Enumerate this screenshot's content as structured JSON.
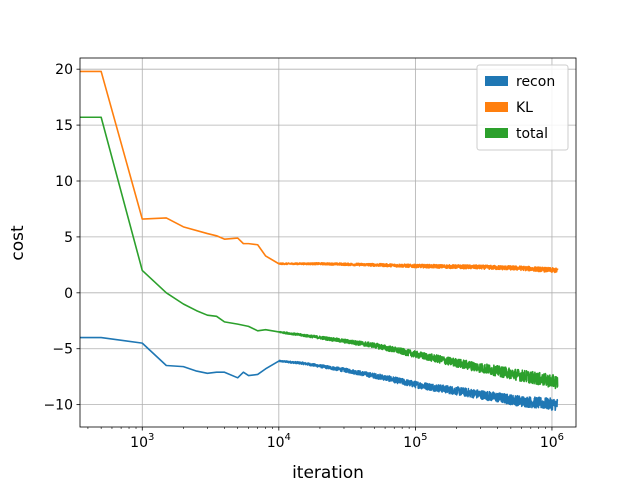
{
  "chart_data": {
    "type": "line",
    "xlabel": "iteration",
    "ylabel": "cost",
    "x_scale": "log",
    "xlim": [
      350,
      1500000
    ],
    "ylim": [
      -12,
      21
    ],
    "grid": true,
    "legend_position": "top-right",
    "x_ticks": [
      {
        "value": 1000,
        "base": "10",
        "exp": "3"
      },
      {
        "value": 10000,
        "base": "10",
        "exp": "4"
      },
      {
        "value": 100000,
        "base": "10",
        "exp": "5"
      },
      {
        "value": 1000000,
        "base": "10",
        "exp": "6"
      }
    ],
    "y_ticks": [
      {
        "value": -10,
        "label": "−10"
      },
      {
        "value": -5,
        "label": "−5"
      },
      {
        "value": 0,
        "label": "0"
      },
      {
        "value": 5,
        "label": "5"
      },
      {
        "value": 10,
        "label": "10"
      },
      {
        "value": 15,
        "label": "15"
      },
      {
        "value": 20,
        "label": "20"
      }
    ],
    "series": [
      {
        "name": "recon",
        "color": "#1f77b4",
        "noise": [
          0.1,
          0.5,
          0.9
        ],
        "points": [
          [
            350,
            -4.0
          ],
          [
            500,
            -4.0
          ],
          [
            1000,
            -4.5
          ],
          [
            1500,
            -6.5
          ],
          [
            2000,
            -6.6
          ],
          [
            2500,
            -7.0
          ],
          [
            3000,
            -7.2
          ],
          [
            3500,
            -7.1
          ],
          [
            4000,
            -7.1
          ],
          [
            5000,
            -7.6
          ],
          [
            5500,
            -7.1
          ],
          [
            6000,
            -7.4
          ],
          [
            7000,
            -7.3
          ],
          [
            8000,
            -6.8
          ],
          [
            10000,
            -6.1
          ],
          [
            15000,
            -6.3
          ],
          [
            30000,
            -6.9
          ],
          [
            60000,
            -7.6
          ],
          [
            100000,
            -8.2
          ],
          [
            300000,
            -9.1
          ],
          [
            600000,
            -9.7
          ],
          [
            1100000,
            -10.0
          ]
        ]
      },
      {
        "name": "KL",
        "color": "#ff7f0e",
        "noise": [
          0.1,
          0.25,
          0.35
        ],
        "points": [
          [
            350,
            19.8
          ],
          [
            500,
            19.8
          ],
          [
            1000,
            6.6
          ],
          [
            1500,
            6.7
          ],
          [
            2000,
            5.9
          ],
          [
            3000,
            5.3
          ],
          [
            3500,
            5.1
          ],
          [
            4000,
            4.8
          ],
          [
            5000,
            4.9
          ],
          [
            5500,
            4.4
          ],
          [
            6000,
            4.4
          ],
          [
            7000,
            4.3
          ],
          [
            8000,
            3.3
          ],
          [
            10000,
            2.6
          ],
          [
            20000,
            2.6
          ],
          [
            50000,
            2.5
          ],
          [
            100000,
            2.4
          ],
          [
            300000,
            2.3
          ],
          [
            600000,
            2.2
          ],
          [
            1100000,
            2.0
          ]
        ]
      },
      {
        "name": "total",
        "color": "#2ca02c",
        "noise": [
          0.1,
          0.5,
          1.0
        ],
        "points": [
          [
            350,
            15.7
          ],
          [
            500,
            15.7
          ],
          [
            1000,
            2.0
          ],
          [
            1500,
            0.0
          ],
          [
            2000,
            -1.0
          ],
          [
            2500,
            -1.6
          ],
          [
            3000,
            -2.0
          ],
          [
            3500,
            -2.1
          ],
          [
            4000,
            -2.6
          ],
          [
            5000,
            -2.8
          ],
          [
            6000,
            -3.0
          ],
          [
            7000,
            -3.4
          ],
          [
            8000,
            -3.3
          ],
          [
            10000,
            -3.5
          ],
          [
            20000,
            -4.0
          ],
          [
            50000,
            -4.7
          ],
          [
            100000,
            -5.5
          ],
          [
            300000,
            -6.7
          ],
          [
            600000,
            -7.4
          ],
          [
            1100000,
            -8.0
          ]
        ]
      }
    ]
  }
}
